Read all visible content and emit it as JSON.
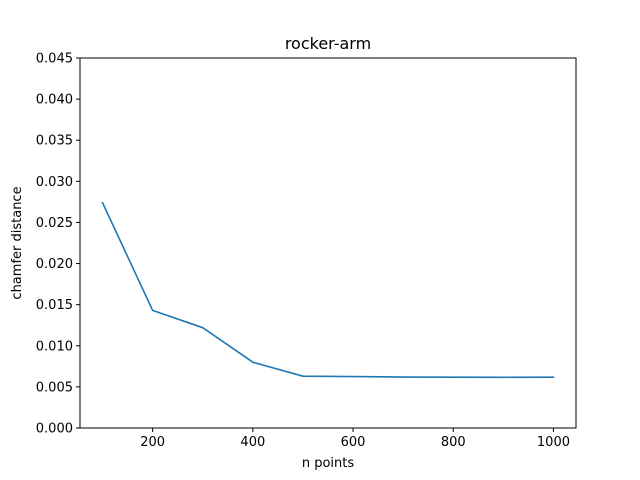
{
  "chart_data": {
    "type": "line",
    "title": "rocker-arm",
    "xlabel": "n points",
    "ylabel": "chamfer distance",
    "xlim": [
      55,
      1045
    ],
    "ylim": [
      0.0,
      0.045
    ],
    "xticks": [
      200,
      400,
      600,
      800,
      1000
    ],
    "xtick_labels": [
      "200",
      "400",
      "600",
      "800",
      "1000"
    ],
    "yticks": [
      0.0,
      0.005,
      0.01,
      0.015,
      0.02,
      0.025,
      0.03,
      0.035,
      0.04,
      0.045
    ],
    "ytick_labels": [
      "0.000",
      "0.005",
      "0.010",
      "0.015",
      "0.020",
      "0.025",
      "0.030",
      "0.035",
      "0.040",
      "0.045"
    ],
    "grid": false,
    "legend": "none",
    "series": [
      {
        "color": "#1f77b4",
        "x": [
          100,
          200,
          300,
          400,
          500,
          600,
          700,
          800,
          900,
          1000
        ],
        "y": [
          0.0274,
          0.0143,
          0.0122,
          0.008,
          0.0063,
          0.00625,
          0.0062,
          0.00618,
          0.00617,
          0.00618
        ]
      }
    ]
  }
}
